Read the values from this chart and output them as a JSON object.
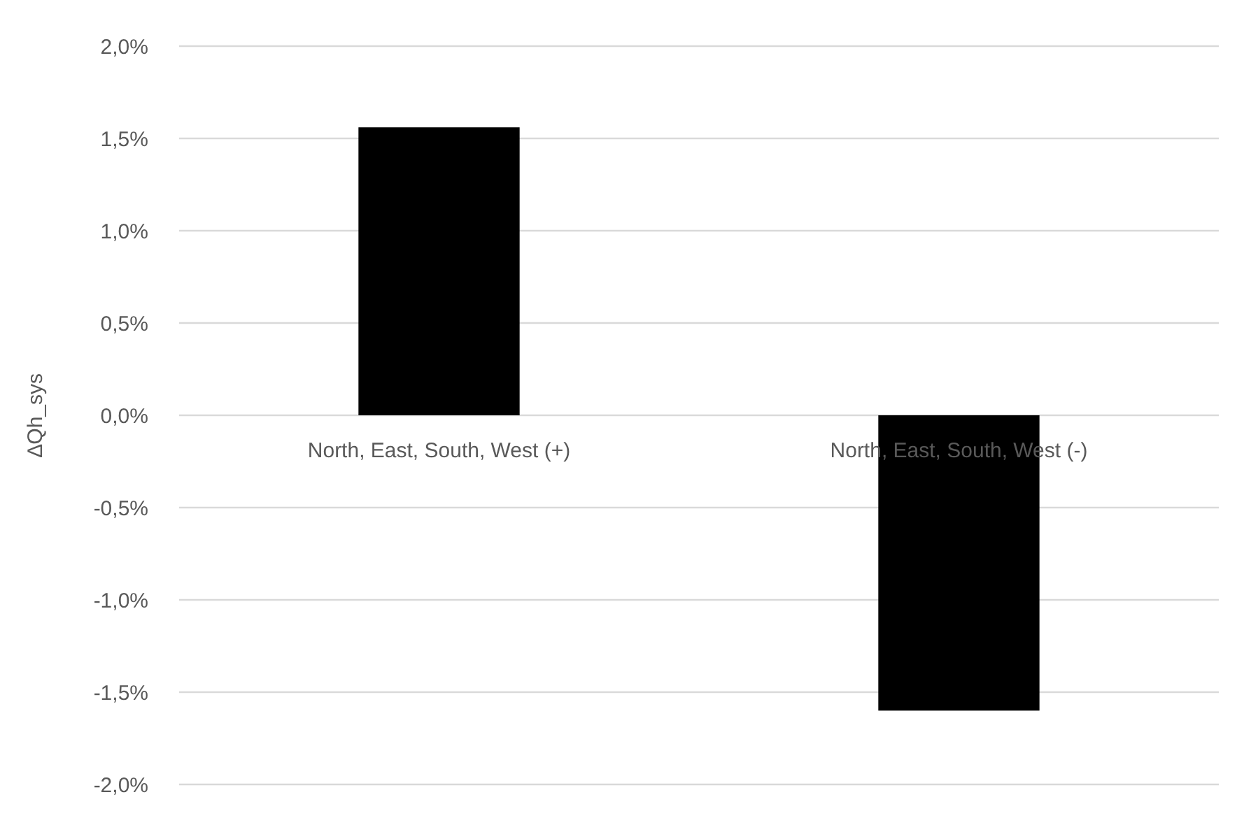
{
  "chart_data": {
    "type": "bar",
    "ylabel": "∆Qh_sys",
    "categories": [
      "North, East, South, West (+)",
      "North, East, South, West (-)"
    ],
    "values": [
      1.56,
      -1.6
    ],
    "color": "#000000",
    "ylim": [
      -2,
      2
    ],
    "yticks": [
      {
        "value": -2,
        "label": "-2,0%"
      },
      {
        "value": -1.5,
        "label": "-1,5%"
      },
      {
        "value": -1,
        "label": "-1,0%"
      },
      {
        "value": -0.5,
        "label": "-0,5%"
      },
      {
        "value": 0,
        "label": "0,0%"
      },
      {
        "value": 0.5,
        "label": "0,5%"
      },
      {
        "value": 1,
        "label": "1,0%"
      },
      {
        "value": 1.5,
        "label": "1,5%"
      },
      {
        "value": 2,
        "label": "2,0%"
      }
    ],
    "grid": true
  }
}
